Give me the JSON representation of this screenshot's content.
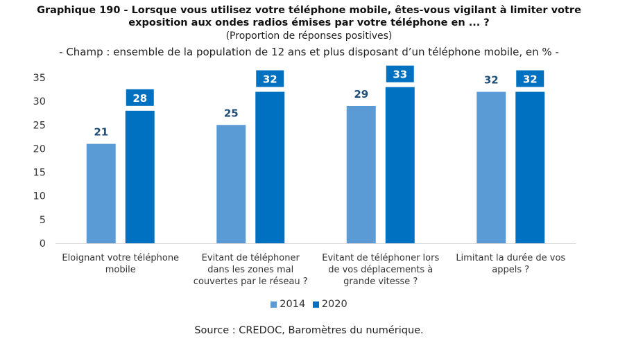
{
  "header": {
    "title_line1": "Graphique 190 - Lorsque vous utilisez votre téléphone mobile, êtes-vous vigilant à limiter votre",
    "title_line2": "exposition aux ondes radios émises par votre téléphone en ... ?",
    "subtitle": "(Proportion de réponses positives)",
    "field": "- Champ : ensemble de la population de 12 ans et plus disposant d’un téléphone mobile, en % -"
  },
  "footer": {
    "source": "Source : CREDOC, Baromètres du numérique."
  },
  "colors": {
    "series_2014": "#5B9BD5",
    "series_2020": "#0070C0",
    "label_box_2020": "#0070C0",
    "label_text_2014": "#1F4E79",
    "axis": "#D9D9D9"
  },
  "chart_data": {
    "type": "bar",
    "categories": [
      [
        "Eloignant votre téléphone",
        "mobile"
      ],
      [
        "Evitant de téléphoner",
        "dans les zones mal",
        "couvertes par le réseau ?"
      ],
      [
        "Evitant de téléphoner lors",
        "de vos déplacements à",
        "grande vitesse ?"
      ],
      [
        "Limitant la durée de vos",
        "appels ?"
      ]
    ],
    "series": [
      {
        "name": "2014",
        "values": [
          21,
          25,
          29,
          32
        ]
      },
      {
        "name": "2020",
        "values": [
          28,
          32,
          33,
          32
        ]
      }
    ],
    "ylim": [
      0,
      35
    ],
    "yticks": [
      "0",
      "5",
      "10",
      "15",
      "20",
      "25",
      "30",
      "35"
    ],
    "grid": false,
    "legend_position": "bottom"
  }
}
